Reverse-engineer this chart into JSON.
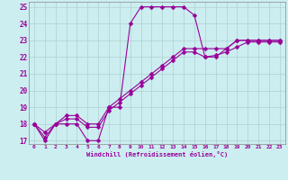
{
  "xlabel": "Windchill (Refroidissement éolien,°C)",
  "bg_color": "#cceef0",
  "line_color": "#990099",
  "grid_color": "#b0cfd0",
  "xlim": [
    -0.5,
    23.5
  ],
  "ylim": [
    16.8,
    25.3
  ],
  "yticks": [
    17,
    18,
    19,
    20,
    21,
    22,
    23,
    24,
    25
  ],
  "xticks": [
    0,
    1,
    2,
    3,
    4,
    5,
    6,
    7,
    8,
    9,
    10,
    11,
    12,
    13,
    14,
    15,
    16,
    17,
    18,
    19,
    20,
    21,
    22,
    23
  ],
  "series1_x": [
    0,
    1,
    2,
    3,
    4,
    5,
    6,
    7,
    8,
    9,
    10,
    11,
    12,
    13,
    14,
    15,
    16,
    17,
    18,
    19,
    20,
    21,
    22,
    23
  ],
  "series1_y": [
    18,
    17,
    18,
    18,
    18,
    17,
    17,
    19,
    19,
    24,
    25,
    25,
    25,
    25,
    25,
    24.5,
    22,
    22,
    22.5,
    23,
    23,
    23,
    23,
    23
  ],
  "series2_x": [
    0,
    1,
    2,
    3,
    4,
    5,
    6,
    7,
    8,
    9,
    10,
    11,
    12,
    13,
    14,
    15,
    16,
    17,
    18,
    19,
    20,
    21,
    22,
    23
  ],
  "series2_y": [
    18,
    17.5,
    18,
    18.5,
    18.5,
    18,
    18,
    19,
    19.5,
    20,
    20.5,
    21,
    21.5,
    22,
    22.5,
    22.5,
    22.5,
    22.5,
    22.5,
    23,
    23,
    23,
    23,
    23
  ],
  "series3_x": [
    0,
    1,
    2,
    3,
    4,
    5,
    6,
    7,
    8,
    9,
    10,
    11,
    12,
    13,
    14,
    15,
    16,
    17,
    18,
    19,
    20,
    21,
    22,
    23
  ],
  "series3_y": [
    18,
    17.2,
    18,
    18.3,
    18.3,
    17.8,
    17.8,
    18.8,
    19.3,
    19.8,
    20.3,
    20.8,
    21.3,
    21.8,
    22.3,
    22.3,
    22.0,
    22.1,
    22.3,
    22.6,
    22.9,
    22.9,
    22.9,
    22.9
  ]
}
